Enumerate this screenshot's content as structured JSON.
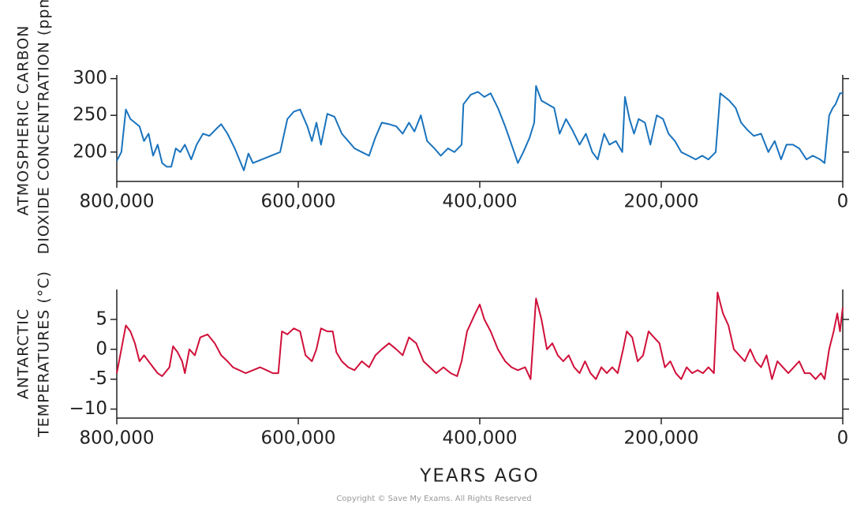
{
  "chart_data": [
    {
      "type": "line",
      "ylabel": [
        "ATMOSPHERIC CARBON",
        "DIOXIDE CONCENTRATION (ppm)"
      ],
      "color": "#1a73bd",
      "xlim": [
        800000,
        0
      ],
      "xticks": [
        {
          "value": 800000,
          "label": "800,000"
        },
        {
          "value": 600000,
          "label": "600,000"
        },
        {
          "value": 400000,
          "label": "400,000"
        },
        {
          "value": 200000,
          "label": "200,000"
        },
        0
      ],
      "ylim": [
        160,
        305
      ],
      "yticks": [
        200,
        250,
        300
      ],
      "x": [
        800000,
        795000,
        790000,
        785000,
        780000,
        775000,
        770000,
        765000,
        760000,
        755000,
        750000,
        745000,
        740000,
        735000,
        730000,
        725000,
        718000,
        712000,
        705000,
        698000,
        690000,
        685000,
        678000,
        670000,
        665000,
        660000,
        655000,
        650000,
        640000,
        630000,
        620000,
        612000,
        605000,
        598000,
        590000,
        585000,
        580000,
        575000,
        568000,
        560000,
        552000,
        545000,
        538000,
        530000,
        522000,
        515000,
        508000,
        500000,
        492000,
        485000,
        478000,
        472000,
        465000,
        458000,
        450000,
        443000,
        435000,
        428000,
        420000,
        418000,
        410000,
        402000,
        395000,
        388000,
        380000,
        372000,
        365000,
        358000,
        352000,
        345000,
        340000,
        338000,
        332000,
        325000,
        318000,
        312000,
        305000,
        298000,
        290000,
        283000,
        276000,
        270000,
        263000,
        257000,
        250000,
        243000,
        240000,
        235000,
        230000,
        225000,
        218000,
        212000,
        205000,
        198000,
        192000,
        185000,
        178000,
        170000,
        162000,
        155000,
        148000,
        140000,
        135000,
        130000,
        125000,
        118000,
        112000,
        105000,
        98000,
        90000,
        82000,
        75000,
        68000,
        62000,
        55000,
        48000,
        40000,
        33000,
        25000,
        20000,
        15000,
        11000,
        8000,
        3000,
        0
      ],
      "values": [
        188,
        200,
        258,
        245,
        240,
        235,
        215,
        225,
        195,
        210,
        185,
        180,
        180,
        205,
        200,
        210,
        190,
        210,
        225,
        222,
        232,
        238,
        225,
        205,
        190,
        175,
        198,
        185,
        190,
        195,
        200,
        245,
        255,
        258,
        235,
        215,
        240,
        210,
        252,
        248,
        225,
        215,
        205,
        200,
        195,
        220,
        240,
        238,
        235,
        225,
        240,
        228,
        250,
        215,
        205,
        195,
        205,
        200,
        210,
        265,
        278,
        282,
        275,
        280,
        260,
        235,
        210,
        185,
        200,
        220,
        240,
        290,
        270,
        265,
        260,
        225,
        245,
        230,
        210,
        225,
        200,
        190,
        225,
        210,
        215,
        200,
        275,
        245,
        225,
        245,
        240,
        210,
        250,
        245,
        225,
        215,
        200,
        195,
        190,
        195,
        190,
        200,
        280,
        275,
        270,
        260,
        240,
        230,
        222,
        225,
        200,
        215,
        190,
        210,
        210,
        205,
        190,
        195,
        190,
        185,
        250,
        260,
        265,
        280,
        280
      ]
    },
    {
      "type": "line",
      "ylabel": [
        "ANTARCTIC",
        "TEMPERATURES (°C)"
      ],
      "xlabel": "YEARS AGO",
      "color": "#d0103a",
      "xlim": [
        800000,
        0
      ],
      "xticks": [
        {
          "value": 800000,
          "label": "800,000"
        },
        {
          "value": 600000,
          "label": "600,000"
        },
        {
          "value": 400000,
          "label": "400,000"
        },
        {
          "value": 200000,
          "label": "200,000"
        },
        0
      ],
      "ylim": [
        -11.5,
        10
      ],
      "yticks": [
        5,
        0,
        -5,
        {
          "value": -10,
          "label": "−10"
        }
      ],
      "x": [
        800000,
        795000,
        790000,
        785000,
        780000,
        775000,
        770000,
        765000,
        760000,
        755000,
        750000,
        742000,
        738000,
        733000,
        728000,
        725000,
        720000,
        714000,
        708000,
        700000,
        692000,
        685000,
        678000,
        672000,
        665000,
        658000,
        650000,
        642000,
        635000,
        628000,
        622000,
        618000,
        612000,
        605000,
        598000,
        592000,
        585000,
        580000,
        575000,
        568000,
        562000,
        558000,
        552000,
        545000,
        538000,
        530000,
        522000,
        515000,
        508000,
        500000,
        492000,
        485000,
        478000,
        470000,
        462000,
        455000,
        448000,
        440000,
        432000,
        425000,
        420000,
        414000,
        405000,
        400000,
        395000,
        388000,
        380000,
        372000,
        365000,
        358000,
        350000,
        344000,
        338000,
        332000,
        326000,
        320000,
        314000,
        308000,
        302000,
        296000,
        290000,
        284000,
        278000,
        272000,
        266000,
        260000,
        254000,
        248000,
        242000,
        238000,
        232000,
        226000,
        220000,
        214000,
        208000,
        202000,
        196000,
        190000,
        184000,
        178000,
        172000,
        166000,
        160000,
        154000,
        148000,
        142000,
        138000,
        132000,
        126000,
        120000,
        114000,
        108000,
        102000,
        96000,
        90000,
        84000,
        78000,
        72000,
        66000,
        60000,
        54000,
        48000,
        42000,
        36000,
        30000,
        24000,
        20000,
        15000,
        10000,
        6000,
        3000,
        0
      ],
      "values": [
        -4,
        0,
        4,
        3,
        1,
        -2,
        -1,
        -2,
        -3,
        -4,
        -4.5,
        -3,
        0.5,
        -0.5,
        -2,
        -4,
        0,
        -1,
        2,
        2.5,
        1,
        -1,
        -2,
        -3,
        -3.5,
        -4,
        -3.5,
        -3,
        -3.5,
        -4,
        -4,
        3,
        2.5,
        3.5,
        3,
        -1,
        -2,
        0,
        3.5,
        3,
        3,
        -0.5,
        -2,
        -3,
        -3.5,
        -2,
        -3,
        -1,
        0,
        1,
        0,
        -1,
        2,
        1,
        -2,
        -3,
        -4,
        -3,
        -4,
        -4.5,
        -2,
        3,
        6,
        7.5,
        5,
        3,
        0,
        -2,
        -3,
        -3.5,
        -3,
        -5,
        8.5,
        5,
        0,
        1,
        -1,
        -2,
        -1,
        -3,
        -4,
        -2,
        -4,
        -5,
        -3,
        -4,
        -3,
        -4,
        0,
        3,
        2,
        -2,
        -1,
        3,
        2,
        1,
        -3,
        -2,
        -4,
        -5,
        -3,
        -4,
        -3.5,
        -4,
        -3,
        -4,
        9.5,
        6,
        4,
        0,
        -1,
        -2,
        0,
        -2,
        -3,
        -1,
        -5,
        -2,
        -3,
        -4,
        -3,
        -2,
        -4,
        -4,
        -5,
        -4,
        -5,
        0,
        3,
        6,
        3,
        7
      ]
    }
  ],
  "copyright": "Copyright © Save My Exams. All Rights Reserved"
}
